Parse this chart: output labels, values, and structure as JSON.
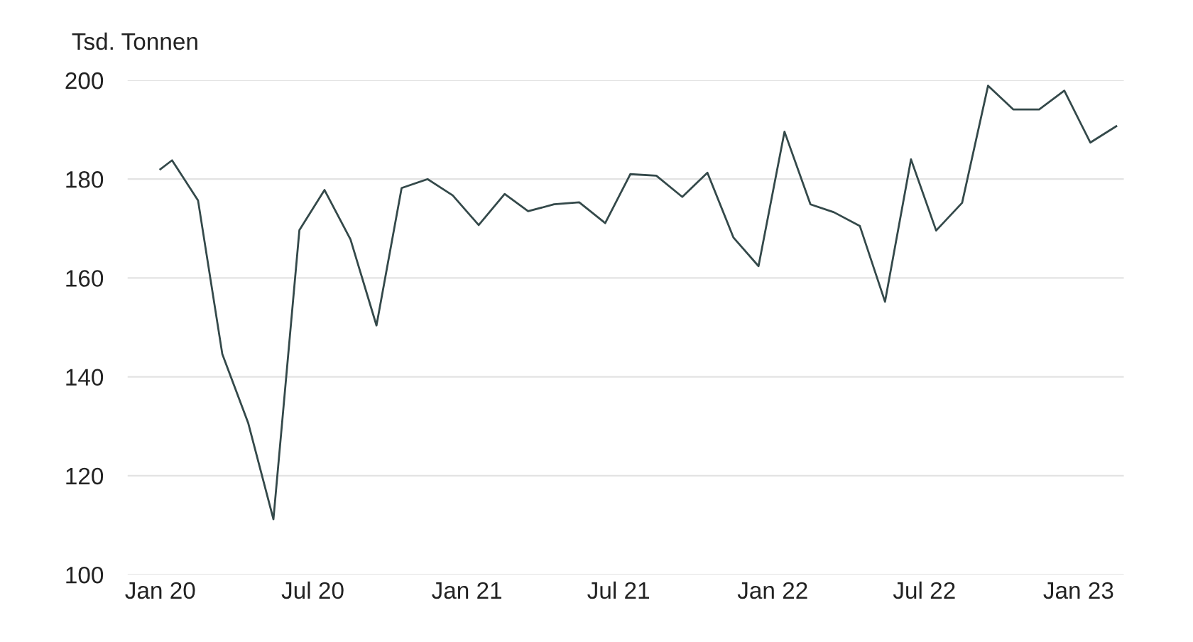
{
  "chart_data": {
    "type": "line",
    "ylabel": "Tsd. Tonnen",
    "x": [
      "2020-01-01",
      "2020-01-15",
      "2020-02-15",
      "2020-03-15",
      "2020-04-15",
      "2020-05-15",
      "2020-06-15",
      "2020-07-15",
      "2020-08-15",
      "2020-09-15",
      "2020-10-15",
      "2020-11-15",
      "2020-12-15",
      "2021-01-15",
      "2021-02-15",
      "2021-03-15",
      "2021-04-15",
      "2021-05-15",
      "2021-06-15",
      "2021-07-15",
      "2021-08-15",
      "2021-09-15",
      "2021-10-15",
      "2021-11-15",
      "2021-12-15",
      "2022-01-15",
      "2022-02-15",
      "2022-03-15",
      "2022-04-15",
      "2022-05-15",
      "2022-06-15",
      "2022-07-15",
      "2022-08-15",
      "2022-09-15",
      "2022-10-15",
      "2022-11-15",
      "2022-12-15",
      "2023-01-15",
      "2023-02-15"
    ],
    "series": [
      {
        "color": "#34494a",
        "values": [
          182.0,
          183.8,
          175.7,
          144.6,
          130.6,
          111.2,
          169.7,
          177.8,
          167.8,
          150.4,
          178.2,
          180.0,
          176.7,
          170.7,
          177.0,
          173.5,
          174.9,
          175.3,
          171.1,
          181.0,
          180.7,
          176.4,
          181.3,
          168.2,
          162.4,
          189.6,
          174.9,
          173.3,
          170.5,
          155.2,
          184.0,
          169.6,
          175.2,
          198.9,
          194.1,
          194.1,
          197.9,
          187.4,
          190.7
        ]
      }
    ],
    "xlim": [
      "2019-11-23",
      "2023-02-24"
    ],
    "xticks": [
      {
        "value": "2020-01-01",
        "label": "Jan 20"
      },
      {
        "value": "2020-07-01",
        "label": "Jul 20"
      },
      {
        "value": "2021-01-01",
        "label": "Jan 21"
      },
      {
        "value": "2021-07-01",
        "label": "Jul 21"
      },
      {
        "value": "2022-01-01",
        "label": "Jan 22"
      },
      {
        "value": "2022-07-01",
        "label": "Jul 22"
      },
      {
        "value": "2023-01-01",
        "label": "Jan 23"
      }
    ],
    "ylim": [
      100,
      200
    ],
    "yticks": [
      100,
      120,
      140,
      160,
      180,
      200
    ],
    "grid": "y",
    "legend": false,
    "marker": "none",
    "line_style": "solid"
  }
}
